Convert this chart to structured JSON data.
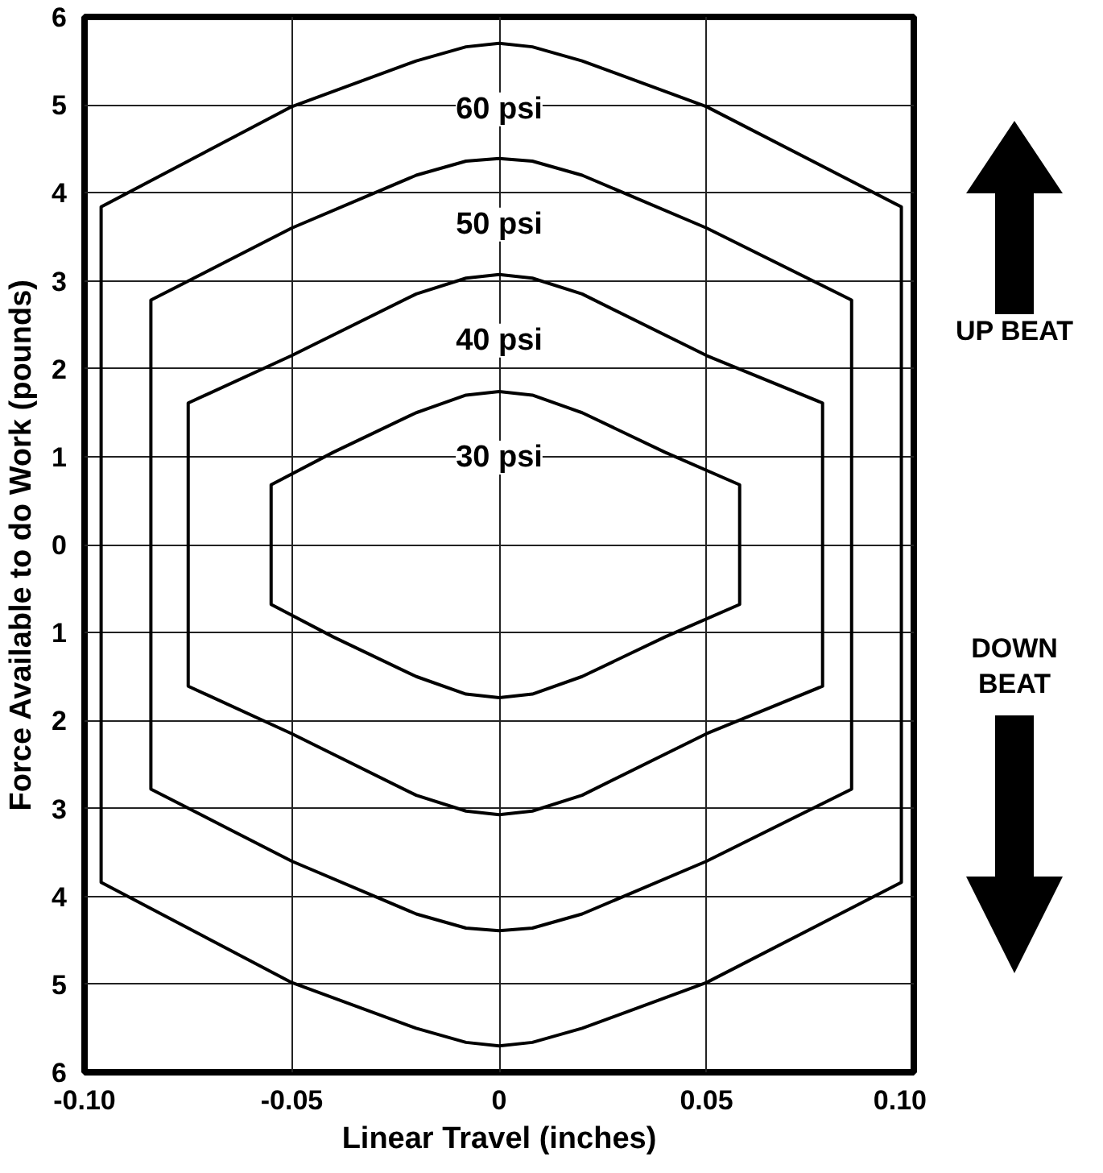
{
  "chart_data": {
    "type": "line",
    "xlabel": "Linear Travel (inches)",
    "ylabel": "Force Available to do Work (pounds)",
    "xlim": [
      -0.1,
      0.1
    ],
    "ylim": [
      -6,
      6
    ],
    "xticks": [
      {
        "value": -0.1,
        "label": "-0.10"
      },
      {
        "value": -0.05,
        "label": "-0.05"
      },
      0,
      {
        "value": 0.05,
        "label": "0.05"
      },
      {
        "value": 0.1,
        "label": "0.10"
      }
    ],
    "yticks": [
      {
        "value": -6,
        "label": "6"
      },
      {
        "value": -5,
        "label": "5"
      },
      {
        "value": -4,
        "label": "4"
      },
      {
        "value": -3,
        "label": "3"
      },
      {
        "value": -2,
        "label": "2"
      },
      {
        "value": -1,
        "label": "1"
      },
      0,
      1,
      2,
      3,
      4,
      5,
      6
    ],
    "grid": true,
    "marker": "none",
    "line_style": "solid",
    "series": [
      {
        "name": "60 psi",
        "color": "#000000",
        "x": [
          -0.096,
          -0.096,
          -0.05,
          -0.02,
          -0.008,
          0,
          0.008,
          0.02,
          0.05,
          0.097,
          0.097,
          null,
          -0.096,
          -0.096,
          -0.05,
          -0.02,
          -0.008,
          0,
          0.008,
          0.02,
          0.05,
          0.097,
          0.097
        ],
        "values": [
          0,
          3.84,
          4.98,
          5.5,
          5.66,
          5.7,
          5.66,
          5.5,
          4.98,
          3.84,
          0,
          null,
          0,
          -3.84,
          -4.98,
          -5.5,
          -5.66,
          -5.7,
          -5.66,
          -5.5,
          -4.98,
          -3.84,
          0
        ]
      },
      {
        "name": "50 psi",
        "color": "#000000",
        "x": [
          -0.084,
          -0.084,
          -0.05,
          -0.02,
          -0.008,
          0,
          0.008,
          0.02,
          0.05,
          0.085,
          0.085,
          null,
          -0.084,
          -0.084,
          -0.05,
          -0.02,
          -0.008,
          0,
          0.008,
          0.02,
          0.05,
          0.085,
          0.085
        ],
        "values": [
          0,
          2.78,
          3.6,
          4.2,
          4.36,
          4.39,
          4.36,
          4.2,
          3.6,
          2.78,
          0,
          null,
          0,
          -2.78,
          -3.6,
          -4.2,
          -4.36,
          -4.39,
          -4.36,
          -4.2,
          -3.6,
          -2.78,
          0
        ]
      },
      {
        "name": "40 psi",
        "color": "#000000",
        "x": [
          -0.075,
          -0.075,
          -0.05,
          -0.02,
          -0.008,
          0,
          0.008,
          0.02,
          0.05,
          0.078,
          0.078,
          null,
          -0.075,
          -0.075,
          -0.05,
          -0.02,
          -0.008,
          0,
          0.008,
          0.02,
          0.05,
          0.078,
          0.078
        ],
        "values": [
          0,
          1.61,
          2.15,
          2.85,
          3.03,
          3.07,
          3.03,
          2.85,
          2.15,
          1.61,
          0,
          null,
          0,
          -1.61,
          -2.15,
          -2.85,
          -3.03,
          -3.07,
          -3.03,
          -2.85,
          -2.15,
          -1.61,
          0
        ]
      },
      {
        "name": "30 psi",
        "color": "#000000",
        "x": [
          -0.055,
          -0.055,
          -0.04,
          -0.02,
          -0.008,
          0,
          0.008,
          0.02,
          0.04,
          0.058,
          0.058,
          null,
          -0.055,
          -0.055,
          -0.04,
          -0.02,
          -0.008,
          0,
          0.008,
          0.02,
          0.04,
          0.058,
          0.058
        ],
        "values": [
          0,
          0.68,
          1.05,
          1.5,
          1.7,
          1.74,
          1.7,
          1.5,
          1.05,
          0.68,
          0,
          null,
          0,
          -0.68,
          -1.05,
          -1.5,
          -1.7,
          -1.74,
          -1.7,
          -1.5,
          -1.05,
          -0.68,
          0
        ]
      }
    ],
    "annotations": [
      "UP BEAT",
      "DOWN BEAT"
    ]
  }
}
